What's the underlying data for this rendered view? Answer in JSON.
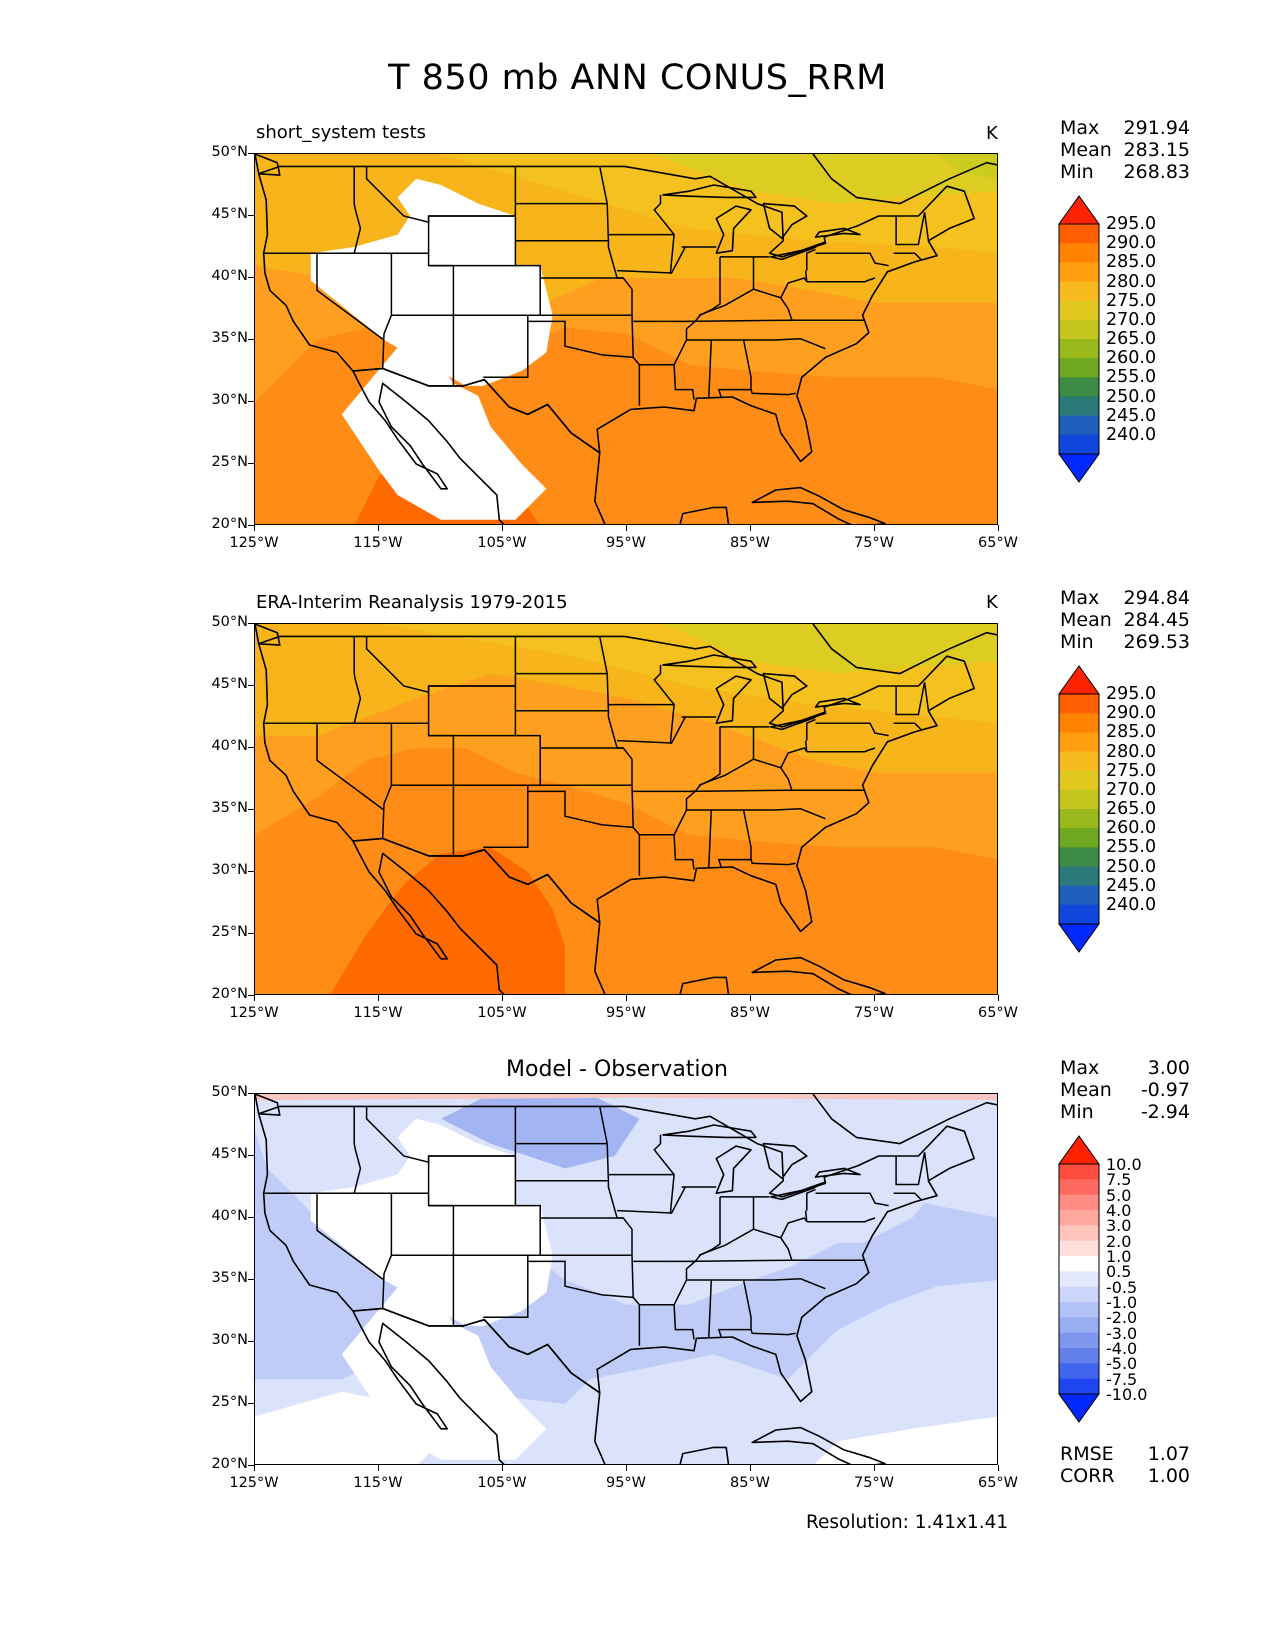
{
  "title": "T 850 mb ANN CONUS_RRM",
  "colors": {
    "lake_white": "#ffffff",
    "border": "#000000"
  },
  "axes": {
    "lat_labels": [
      "50°N",
      "45°N",
      "40°N",
      "35°N",
      "30°N",
      "25°N",
      "20°N"
    ],
    "lon_labels": [
      "125°W",
      "115°W",
      "105°W",
      "95°W",
      "85°W",
      "75°W",
      "65°W"
    ]
  },
  "chart_data": [
    {
      "type": "heatmap",
      "name": "test-panel",
      "title": "short_system tests",
      "units": "K",
      "extent": {
        "lon": [
          -125,
          -65
        ],
        "lat": [
          20,
          50
        ]
      },
      "stats": {
        "max": "291.94",
        "mean": "283.15",
        "min": "268.83"
      },
      "stat_labels": {
        "max": "Max",
        "mean": "Mean",
        "min": "Min"
      },
      "colorbar_levels": [
        "295.0",
        "290.0",
        "285.0",
        "280.0",
        "275.0",
        "270.0",
        "265.0",
        "260.0",
        "255.0",
        "250.0",
        "245.0",
        "240.0"
      ]
    },
    {
      "type": "heatmap",
      "name": "ref-panel",
      "title": "ERA-Interim Reanalysis 1979-2015",
      "units": "K",
      "extent": {
        "lon": [
          -125,
          -65
        ],
        "lat": [
          20,
          50
        ]
      },
      "stats": {
        "max": "294.84",
        "mean": "284.45",
        "min": "269.53"
      },
      "stat_labels": {
        "max": "Max",
        "mean": "Mean",
        "min": "Min"
      },
      "colorbar_levels": [
        "295.0",
        "290.0",
        "285.0",
        "280.0",
        "275.0",
        "270.0",
        "265.0",
        "260.0",
        "255.0",
        "250.0",
        "245.0",
        "240.0"
      ]
    },
    {
      "type": "heatmap",
      "name": "diff-panel",
      "title": "Model - Observation",
      "units": "",
      "extent": {
        "lon": [
          -125,
          -65
        ],
        "lat": [
          20,
          50
        ]
      },
      "stats": {
        "max": "3.00",
        "mean": "-0.97",
        "min": "-2.94"
      },
      "stat_labels": {
        "max": "Max",
        "mean": "Mean",
        "min": "Min"
      },
      "colorbar_levels": [
        "10.0",
        "7.5",
        "5.0",
        "4.0",
        "3.0",
        "2.0",
        "1.0",
        "0.5",
        "-0.5",
        "-1.0",
        "-2.0",
        "-3.0",
        "-4.0",
        "-5.0",
        "-7.5",
        "-10.0"
      ],
      "metrics": {
        "rmse_label": "RMSE",
        "rmse": "1.07",
        "corr_label": "CORR",
        "corr": "1.00"
      }
    }
  ],
  "footer": {
    "resolution": "Resolution: 1.41x1.41"
  }
}
